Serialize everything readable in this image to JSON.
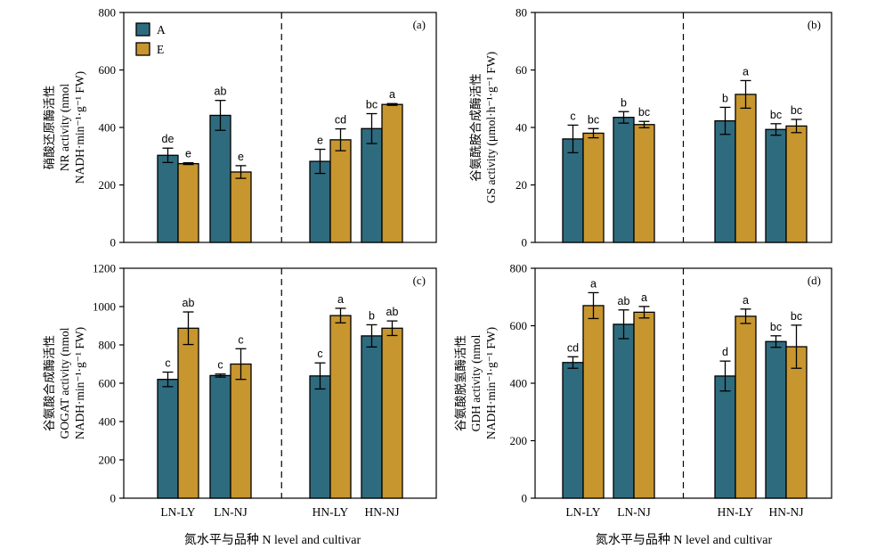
{
  "colors": {
    "A": "#2f6b7e",
    "E": "#c8962e"
  },
  "legend": [
    {
      "key": "A",
      "label": "A"
    },
    {
      "key": "E",
      "label": "E"
    }
  ],
  "categories": [
    "LN-LY",
    "LN-NJ",
    "HN-LY",
    "HN-NJ"
  ],
  "xlabel": "氮水平与品种 N level and cultivar",
  "chart_data": [
    {
      "type": "bar",
      "panel": "(a)",
      "ylabel_lines": [
        "硝酸还原酶活性",
        "NR activity (nmol",
        "NADH·min⁻¹·g⁻¹ FW)"
      ],
      "ylim": [
        0,
        800
      ],
      "yticks": [
        0,
        200,
        400,
        600,
        800
      ],
      "categories": [
        "LN-LY",
        "LN-NJ",
        "HN-LY",
        "HN-NJ"
      ],
      "series": [
        {
          "name": "A",
          "values": [
            303,
            442,
            282,
            396
          ],
          "errors": [
            25,
            52,
            42,
            52
          ],
          "letters": [
            "de",
            "ab",
            "e",
            "bc"
          ]
        },
        {
          "name": "E",
          "values": [
            274,
            245,
            357,
            480
          ],
          "errors": [
            3,
            22,
            38,
            3
          ],
          "letters": [
            "e",
            "e",
            "cd",
            "a"
          ]
        }
      ]
    },
    {
      "type": "bar",
      "panel": "(b)",
      "ylabel_lines": [
        "谷氨酰胺合成酶活性",
        "GS activity (μmol·h⁻¹·g⁻¹ FW)"
      ],
      "ylim": [
        0,
        80
      ],
      "yticks": [
        0,
        20,
        40,
        60,
        80
      ],
      "categories": [
        "LN-LY",
        "LN-NJ",
        "HN-LY",
        "HN-NJ"
      ],
      "series": [
        {
          "name": "A",
          "values": [
            36.0,
            43.5,
            42.3,
            39.3
          ],
          "errors": [
            4.8,
            2.0,
            4.7,
            2.0
          ],
          "letters": [
            "c",
            "b",
            "b",
            "bc"
          ]
        },
        {
          "name": "E",
          "values": [
            38.0,
            41.0,
            51.5,
            40.5
          ],
          "errors": [
            1.6,
            1.1,
            4.8,
            2.3
          ],
          "letters": [
            "bc",
            "bc",
            "a",
            "bc"
          ]
        }
      ]
    },
    {
      "type": "bar",
      "panel": "(c)",
      "ylabel_lines": [
        "谷氨酸合成酶活性",
        "GOGAT activity (nmol",
        "NADH·min⁻¹·g⁻¹ FW)"
      ],
      "ylim": [
        0,
        1200
      ],
      "yticks": [
        0,
        200,
        400,
        600,
        800,
        1000,
        1200
      ],
      "categories": [
        "LN-LY",
        "LN-NJ",
        "HN-LY",
        "HN-NJ"
      ],
      "series": [
        {
          "name": "A",
          "values": [
            620,
            640,
            638,
            847
          ],
          "errors": [
            38,
            8,
            68,
            58
          ],
          "letters": [
            "c",
            "c",
            "c",
            "b"
          ]
        },
        {
          "name": "E",
          "values": [
            887,
            700,
            953,
            887
          ],
          "errors": [
            85,
            80,
            38,
            38
          ],
          "letters": [
            "ab",
            "c",
            "a",
            "ab"
          ]
        }
      ]
    },
    {
      "type": "bar",
      "panel": "(d)",
      "ylabel_lines": [
        "谷氨酸脱氢酶活性",
        "GDH activity (nmol",
        "NADH·min⁻¹·g⁻¹ FW)"
      ],
      "ylim": [
        0,
        800
      ],
      "yticks": [
        0,
        200,
        400,
        600,
        800
      ],
      "categories": [
        "LN-LY",
        "LN-NJ",
        "HN-LY",
        "HN-NJ"
      ],
      "series": [
        {
          "name": "A",
          "values": [
            472,
            605,
            425,
            545
          ],
          "errors": [
            20,
            50,
            52,
            20
          ],
          "letters": [
            "cd",
            "ab",
            "d",
            "bc"
          ]
        },
        {
          "name": "E",
          "values": [
            670,
            647,
            633,
            527
          ],
          "errors": [
            45,
            20,
            25,
            75
          ],
          "letters": [
            "a",
            "a",
            "a",
            "bc"
          ]
        }
      ]
    }
  ]
}
